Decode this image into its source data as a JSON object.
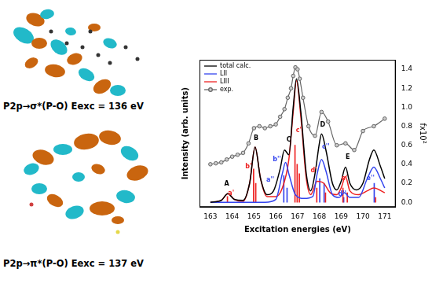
{
  "chart_data": {
    "type": "line",
    "xlabel": "Excitation energies (eV)",
    "ylabel": "Intensity (arb. units)",
    "y_right_label": "fx10²",
    "xlim": [
      163,
      171
    ],
    "xticks": [
      163,
      164,
      165,
      166,
      167,
      168,
      169,
      170,
      171
    ],
    "ylim": [
      -0.05,
      1.5
    ],
    "yticks": [
      {
        "value": 0,
        "label": "0.0"
      },
      0.2,
      0.4,
      0.6,
      0.8,
      {
        "value": 1,
        "label": "1.0"
      },
      1.2,
      1.4
    ],
    "grid": false,
    "legend": "upper left",
    "series": [
      {
        "name": "total calc.",
        "color": "#000000",
        "type": "line",
        "x": [
          163.0,
          163.5,
          163.8,
          164.1,
          164.5,
          164.8,
          165.05,
          165.3,
          165.6,
          165.9,
          166.2,
          166.4,
          166.6,
          166.8,
          166.95,
          167.15,
          167.4,
          167.6,
          167.8,
          168.0,
          168.1,
          168.3,
          168.6,
          168.8,
          169.0,
          169.2,
          169.4,
          169.7,
          170.0,
          170.3,
          170.5,
          170.8,
          171.0
        ],
        "values": [
          0.0,
          0.02,
          0.09,
          0.03,
          0.02,
          0.2,
          0.58,
          0.25,
          0.08,
          0.12,
          0.35,
          0.55,
          0.5,
          1.0,
          1.3,
          0.95,
          0.3,
          0.12,
          0.3,
          0.62,
          0.72,
          0.55,
          0.2,
          0.13,
          0.22,
          0.37,
          0.2,
          0.13,
          0.2,
          0.45,
          0.55,
          0.38,
          0.25
        ]
      },
      {
        "name": "LII",
        "color": "#3344ee",
        "type": "line",
        "x": [
          163.0,
          165.5,
          166.0,
          166.3,
          166.45,
          166.6,
          166.9,
          167.3,
          167.7,
          167.9,
          168.1,
          168.3,
          168.6,
          168.9,
          169.15,
          169.4,
          169.8,
          170.2,
          170.5,
          170.8,
          171.0
        ],
        "values": [
          0.0,
          0.0,
          0.03,
          0.3,
          0.42,
          0.3,
          0.08,
          0.04,
          0.06,
          0.3,
          0.45,
          0.33,
          0.08,
          0.05,
          0.1,
          0.05,
          0.05,
          0.25,
          0.37,
          0.25,
          0.15
        ]
      },
      {
        "name": "LIII",
        "color": "#ee2222",
        "type": "line",
        "x": [
          163.0,
          163.5,
          163.8,
          164.1,
          164.5,
          164.8,
          165.05,
          165.3,
          165.6,
          166.0,
          166.3,
          166.6,
          166.8,
          166.95,
          167.15,
          167.4,
          167.6,
          167.9,
          168.2,
          168.5,
          168.8,
          169.0,
          169.2,
          169.4,
          169.8,
          170.2,
          170.5,
          171.0
        ],
        "values": [
          0.0,
          0.02,
          0.09,
          0.03,
          0.01,
          0.2,
          0.58,
          0.25,
          0.06,
          0.06,
          0.15,
          0.45,
          0.95,
          1.28,
          0.9,
          0.25,
          0.08,
          0.22,
          0.2,
          0.1,
          0.08,
          0.15,
          0.27,
          0.12,
          0.08,
          0.12,
          0.15,
          0.1
        ]
      },
      {
        "name": "exp.",
        "color": "#666666",
        "type": "line",
        "marker": "circle",
        "x": [
          163.0,
          163.25,
          163.5,
          163.75,
          164.0,
          164.25,
          164.5,
          164.75,
          165.0,
          165.25,
          165.5,
          165.75,
          166.0,
          166.2,
          166.4,
          166.55,
          166.7,
          166.8,
          166.9,
          167.0,
          167.1,
          167.25,
          167.5,
          167.8,
          168.1,
          168.4,
          168.8,
          169.2,
          169.6,
          170.0,
          170.5,
          171.0
        ],
        "values": [
          0.4,
          0.41,
          0.42,
          0.45,
          0.48,
          0.5,
          0.52,
          0.62,
          0.78,
          0.8,
          0.78,
          0.8,
          0.82,
          0.9,
          0.98,
          1.1,
          1.2,
          1.33,
          1.42,
          1.4,
          1.3,
          1.1,
          0.8,
          0.7,
          0.95,
          0.85,
          0.6,
          0.62,
          0.55,
          0.75,
          0.8,
          0.88
        ]
      },
      {
        "color": "#ee2222",
        "type": "stick",
        "x": [
          163.8,
          165.0,
          165.1,
          166.9,
          167.0,
          167.1,
          167.9,
          168.3,
          169.1,
          169.3,
          170.6
        ],
        "values": [
          0.06,
          0.35,
          0.2,
          0.6,
          0.4,
          0.3,
          0.15,
          0.1,
          0.15,
          0.1,
          0.05
        ]
      },
      {
        "color": "#3344ee",
        "type": "stick",
        "x": [
          166.35,
          166.5,
          168.0,
          168.2,
          169.1,
          170.5
        ],
        "values": [
          0.28,
          0.15,
          0.25,
          0.2,
          0.05,
          0.2
        ]
      }
    ],
    "annotations": [
      {
        "text": "A",
        "x": 163.75,
        "y": 0.16,
        "color": "#000000"
      },
      {
        "text": "a'",
        "x": 163.95,
        "y": 0.06,
        "color": "#ee2222"
      },
      {
        "text": "B",
        "x": 165.1,
        "y": 0.64,
        "color": "#000000"
      },
      {
        "text": "b'",
        "x": 164.75,
        "y": 0.34,
        "color": "#ee2222"
      },
      {
        "text": "b''",
        "x": 166.05,
        "y": 0.42,
        "color": "#3344ee"
      },
      {
        "text": "a''",
        "x": 165.75,
        "y": 0.2,
        "color": "#3344ee"
      },
      {
        "text": "C",
        "x": 166.6,
        "y": 0.62,
        "color": "#000000"
      },
      {
        "text": "c'",
        "x": 167.05,
        "y": 0.72,
        "color": "#ee2222"
      },
      {
        "text": "c''",
        "x": 168.3,
        "y": 0.55,
        "color": "#3344ee"
      },
      {
        "text": "D",
        "x": 168.15,
        "y": 0.78,
        "color": "#000000"
      },
      {
        "text": "d'",
        "x": 167.75,
        "y": 0.3,
        "color": "#ee2222"
      },
      {
        "text": "d''",
        "x": 169.05,
        "y": 0.05,
        "color": "#3344ee"
      },
      {
        "text": "E",
        "x": 169.3,
        "y": 0.44,
        "color": "#000000"
      },
      {
        "text": "e'",
        "x": 169.15,
        "y": 0.22,
        "color": "#ee2222"
      },
      {
        "text": "e''",
        "x": 170.35,
        "y": 0.22,
        "color": "#3344ee"
      }
    ],
    "panels": [
      {
        "transition": "P2p→σ*(P-O)",
        "energy": "Eexc = 136 eV"
      },
      {
        "transition": "P2p→π*(P-O)",
        "energy": "Eexc = 137 eV"
      }
    ]
  }
}
